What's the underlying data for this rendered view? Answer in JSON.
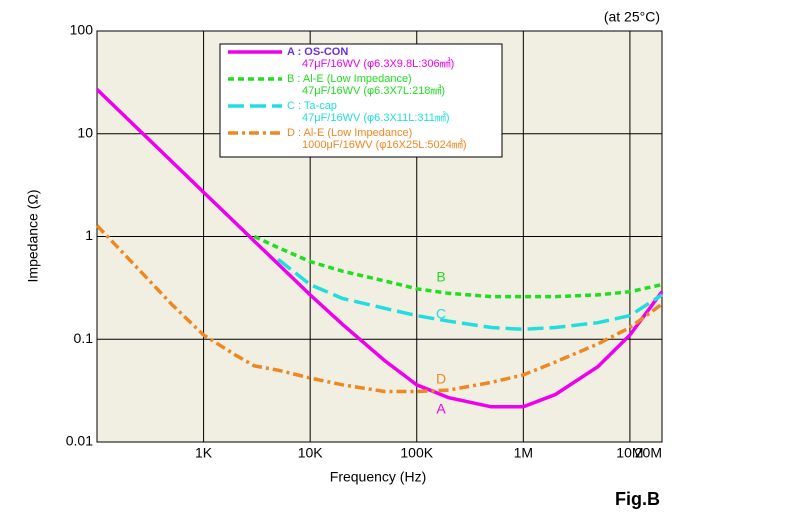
{
  "chart_data": {
    "type": "line",
    "subtitle": "(at 25°C)",
    "caption": "Fig.B",
    "x_label": "Frequency (Hz)",
    "y_label": "Impedance (Ω)",
    "log_x": true,
    "log_y": true,
    "grid": true,
    "x": [
      100,
      200,
      500,
      1000,
      2000,
      3000,
      5000,
      10000,
      20000,
      50000,
      100000,
      200000,
      500000,
      1000000,
      2000000,
      5000000,
      10000000,
      20000000
    ],
    "xlim": [
      100,
      20000000
    ],
    "xticks": [
      {
        "value": 1000,
        "label": "1K"
      },
      {
        "value": 10000,
        "label": "10K"
      },
      {
        "value": 100000,
        "label": "100K"
      },
      {
        "value": 1000000,
        "label": "1M"
      },
      {
        "value": 10000000,
        "label": "10M"
      },
      {
        "value": 20000000,
        "label": "20M"
      }
    ],
    "ylim": [
      0.01,
      100
    ],
    "yticks": [
      0.01,
      0.1,
      1,
      10,
      100
    ],
    "series": [
      {
        "name": "A : OS-CON",
        "description": "47μF/16WV (φ6.3X9.8L:306㎣)",
        "label": "A",
        "color": "#ee00ee",
        "dash": "solid",
        "values": [
          27,
          13.5,
          5.4,
          2.7,
          1.35,
          0.9,
          0.54,
          0.27,
          0.14,
          0.062,
          0.036,
          0.027,
          0.022,
          0.022,
          0.029,
          0.054,
          0.11,
          0.29
        ]
      },
      {
        "name": "B : Al-E (Low Impedance)",
        "description": "47μF/16WV (φ6.3X7L:218㎣)",
        "label": "B",
        "color": "#22dd22",
        "dash": "short",
        "values": [
          null,
          null,
          null,
          null,
          null,
          1,
          0.78,
          0.57,
          0.46,
          0.37,
          0.31,
          0.28,
          0.26,
          0.26,
          0.26,
          0.27,
          0.29,
          0.34
        ]
      },
      {
        "name": "C : Ta-cap",
        "description": "47μF/16WV (φ6.3X11L:311㎣)",
        "label": "C",
        "color": "#22dddd",
        "dash": "long",
        "values": [
          null,
          null,
          null,
          null,
          null,
          null,
          0.6,
          0.34,
          0.25,
          0.2,
          0.17,
          0.15,
          0.13,
          0.125,
          0.13,
          0.145,
          0.17,
          0.27
        ]
      },
      {
        "name": "D : Al-E (Low Impedance)",
        "description": "1000μF/16WV (φ16X25L:5024㎣)",
        "label": "D",
        "color": "#ee8822",
        "dash": "dashdot",
        "values": [
          1.28,
          0.6,
          0.22,
          0.11,
          0.07,
          0.055,
          0.05,
          0.042,
          0.036,
          0.031,
          0.031,
          0.032,
          0.038,
          0.045,
          0.06,
          0.09,
          0.13,
          0.22
        ]
      }
    ]
  }
}
